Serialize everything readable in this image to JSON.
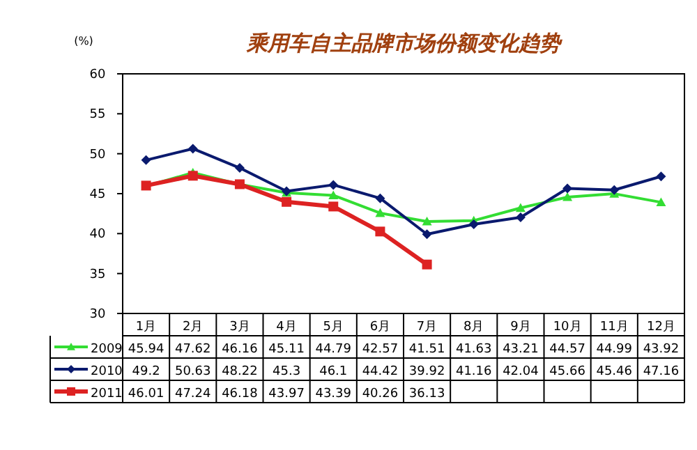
{
  "chart_data": {
    "type": "line",
    "title": "乘用车自主品牌市场份额变化趋势",
    "ylabel": "(%)",
    "categories": [
      "1月",
      "2月",
      "3月",
      "4月",
      "5月",
      "6月",
      "7月",
      "8月",
      "9月",
      "10月",
      "11月",
      "12月"
    ],
    "series": [
      {
        "name": "2009",
        "color": "#33dd33",
        "marker": "triangle",
        "values": [
          45.94,
          47.62,
          46.16,
          45.11,
          44.79,
          42.57,
          41.51,
          41.63,
          43.21,
          44.57,
          44.99,
          43.92
        ]
      },
      {
        "name": "2010",
        "color": "#0a1a6e",
        "marker": "diamond",
        "values": [
          49.2,
          50.63,
          48.22,
          45.3,
          46.1,
          44.42,
          39.92,
          41.16,
          42.04,
          45.66,
          45.46,
          47.16
        ]
      },
      {
        "name": "2011",
        "color": "#dd2222",
        "marker": "square",
        "values": [
          46.01,
          47.24,
          46.18,
          43.97,
          43.39,
          40.26,
          36.13,
          null,
          null,
          null,
          null,
          null
        ]
      }
    ],
    "ylim": [
      30,
      60
    ],
    "yticks": [
      30,
      35,
      40,
      45,
      50,
      55,
      60
    ],
    "grid": false,
    "legend": "bottom",
    "data_labels": true
  }
}
